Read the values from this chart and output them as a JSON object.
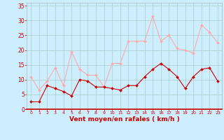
{
  "x": [
    0,
    1,
    2,
    3,
    4,
    5,
    6,
    7,
    8,
    9,
    10,
    11,
    12,
    13,
    14,
    15,
    16,
    17,
    18,
    19,
    20,
    21,
    22,
    23
  ],
  "wind_avg": [
    2.5,
    2.5,
    8,
    7,
    6,
    4.5,
    10,
    9.5,
    7.5,
    7.5,
    7,
    6.5,
    8,
    8,
    11,
    13.5,
    15.5,
    13.5,
    11,
    7,
    11,
    13.5,
    14,
    9.5
  ],
  "wind_gust": [
    11,
    6.5,
    9.5,
    14,
    8,
    19.5,
    13.5,
    11.5,
    11.5,
    7.5,
    15.5,
    15.5,
    23,
    23,
    23,
    31.5,
    23,
    25,
    20.5,
    20,
    19,
    28.5,
    26,
    22.5
  ],
  "avg_line_color": "#cc0000",
  "gust_line_color": "#ffaaaa",
  "background_color": "#cceeff",
  "grid_color": "#aacccc",
  "xlabel": "Vent moyen/en rafales ( km/h )",
  "ylim": [
    0,
    36
  ],
  "xlim": [
    -0.5,
    23.5
  ],
  "yticks": [
    0,
    5,
    10,
    15,
    20,
    25,
    30,
    35
  ],
  "xticks": [
    0,
    1,
    2,
    3,
    4,
    5,
    6,
    7,
    8,
    9,
    10,
    11,
    12,
    13,
    14,
    15,
    16,
    17,
    18,
    19,
    20,
    21,
    22,
    23
  ],
  "tick_color": "#cc0000",
  "spine_bottom_color": "#cc0000",
  "xlabel_color": "#cc0000"
}
